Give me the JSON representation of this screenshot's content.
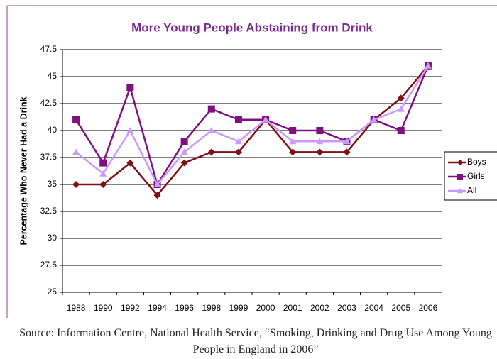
{
  "chart_data": {
    "type": "line",
    "title": "More Young People Abstaining from Drink",
    "y_label": "Percentage Who Never Had a Drink",
    "categories": [
      "1988",
      "1990",
      "1992",
      "1994",
      "1996",
      "1998",
      "1999",
      "2000",
      "2001",
      "2002",
      "2003",
      "2004",
      "2005",
      "2006"
    ],
    "series": [
      {
        "name": "Boys",
        "color": "#7f1014",
        "marker": "diamond",
        "values": [
          35,
          35,
          37,
          34,
          37,
          38,
          38,
          41,
          38,
          38,
          38,
          41,
          43,
          46
        ]
      },
      {
        "name": "Girls",
        "color": "#80107f",
        "marker": "square",
        "values": [
          41,
          37,
          44,
          35,
          39,
          42,
          41,
          41,
          40,
          40,
          39,
          41,
          40,
          46
        ]
      },
      {
        "name": "All",
        "color": "#cc99ff",
        "marker": "triangle",
        "values": [
          38,
          36,
          40,
          35,
          38,
          40,
          39,
          41,
          39,
          39,
          39,
          41,
          42,
          46
        ]
      }
    ],
    "ylim": [
      25,
      47.5
    ],
    "yticks": [
      25,
      27.5,
      30,
      32.5,
      35,
      37.5,
      40,
      42.5,
      45,
      47.5
    ],
    "grid": true,
    "legend": "right",
    "source": "Source: Information Centre, National Health Service, “Smoking, Drinking and Drug Use Among Young People in England in 2006”"
  }
}
